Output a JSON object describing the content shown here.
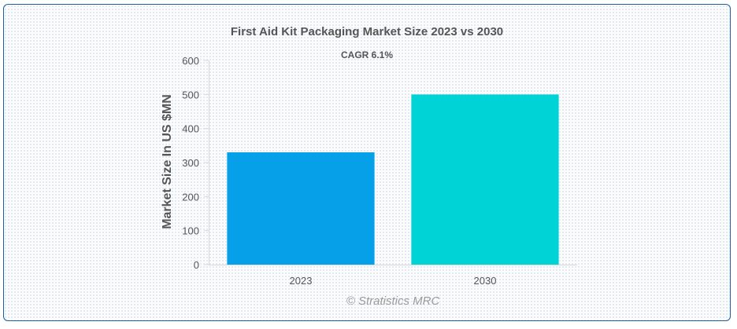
{
  "chart_data": {
    "type": "bar",
    "title": "First Aid Kit Packaging Market Size 2023 vs 2030",
    "subtitle": "CAGR 6.1%",
    "categories": [
      "2023",
      "2030"
    ],
    "values": [
      330,
      500
    ],
    "colors": [
      "#05a0e8",
      "#00d3d6"
    ],
    "ylabel": "Market Size In US $MN",
    "xlabel": "",
    "ylim": [
      0,
      600
    ],
    "yticks": [
      "0",
      "100",
      "200",
      "300",
      "400",
      "500",
      "600"
    ],
    "grid": false,
    "legend": "none"
  },
  "watermark": "© Stratistics MRC"
}
